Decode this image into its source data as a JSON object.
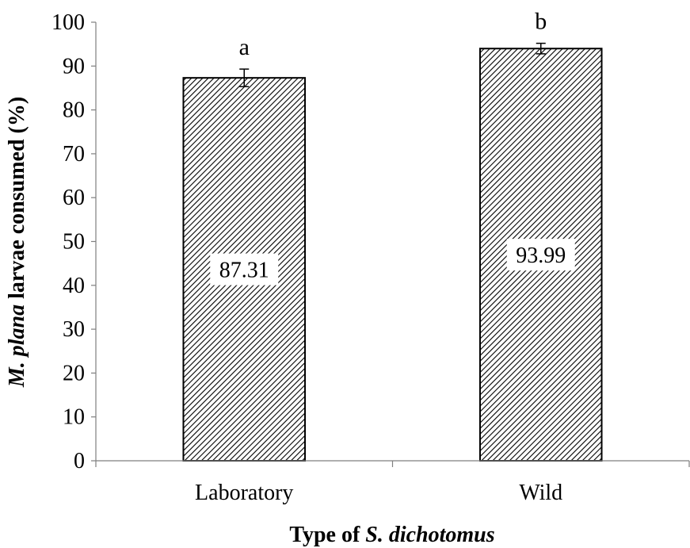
{
  "chart_data": {
    "type": "bar",
    "categories": [
      "Laboratory",
      "Wild"
    ],
    "values": [
      87.31,
      93.99
    ],
    "errors": [
      2.0,
      1.2
    ],
    "data_labels": [
      "87.31",
      "93.99"
    ],
    "significance_letters": [
      "a",
      "b"
    ],
    "ylim": [
      0,
      100
    ],
    "y_ticks": [
      0,
      10,
      20,
      30,
      40,
      50,
      60,
      70,
      80,
      90,
      100
    ],
    "ylabel": {
      "italic": "M. plana",
      "rest": " larvae consumed (%)"
    },
    "xlabel": {
      "prefix": "Type of ",
      "italic": "S. dichotomus"
    },
    "grid": false,
    "bar_fill": "diagonal-hatch",
    "colors": {
      "bar_stroke": "#000000",
      "hatch": "#000000",
      "axis": "#7f7f7f",
      "background": "#ffffff"
    }
  }
}
